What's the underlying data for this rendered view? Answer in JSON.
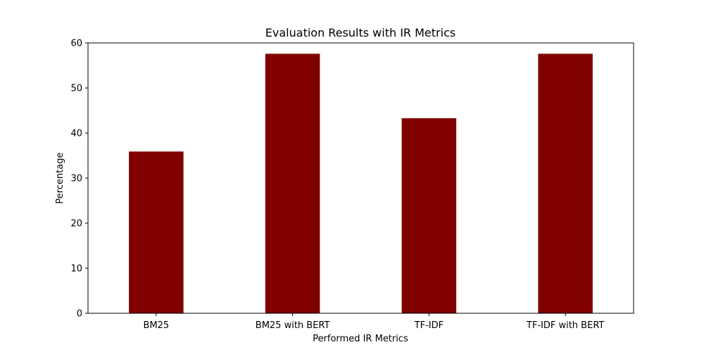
{
  "chart_data": {
    "type": "bar",
    "title": "Evaluation Results with IR Metrics",
    "xlabel": "Performed IR Metrics",
    "ylabel": "Percentage",
    "categories": [
      "BM25",
      "BM25 with BERT",
      "TF-IDF",
      "TF-IDF with BERT"
    ],
    "values": [
      35.9,
      57.6,
      43.3,
      57.6
    ],
    "ylim": [
      0,
      60
    ],
    "yticks": [
      0,
      10,
      20,
      30,
      40,
      50,
      60
    ],
    "bar_color": "#800000",
    "grid": false,
    "legend": "none"
  }
}
